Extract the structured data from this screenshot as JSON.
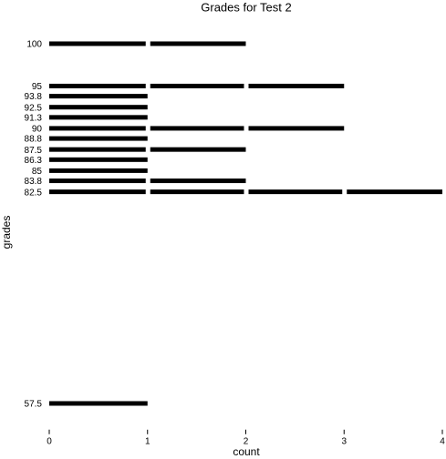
{
  "chart_data": {
    "type": "bar",
    "orientation": "horizontal",
    "title": "Grades for Test 2",
    "x_label": "count",
    "y_label": "grades",
    "y": [
      100,
      95,
      93.8,
      92.5,
      91.3,
      90,
      88.8,
      87.5,
      86.3,
      85,
      83.8,
      82.5,
      57.5
    ],
    "values": [
      2,
      3,
      1,
      1,
      1,
      3,
      1,
      2,
      1,
      1,
      2,
      4,
      1
    ],
    "color": "#000000",
    "xlim": [
      0,
      4
    ],
    "xticks": [
      0,
      1,
      2,
      3,
      4
    ],
    "ylim": [
      54.4,
      103
    ],
    "yticks": [
      100,
      95,
      93.8,
      92.5,
      91.3,
      90,
      88.8,
      87.5,
      86.3,
      85,
      83.8,
      82.5,
      57.5
    ],
    "grid": false
  }
}
